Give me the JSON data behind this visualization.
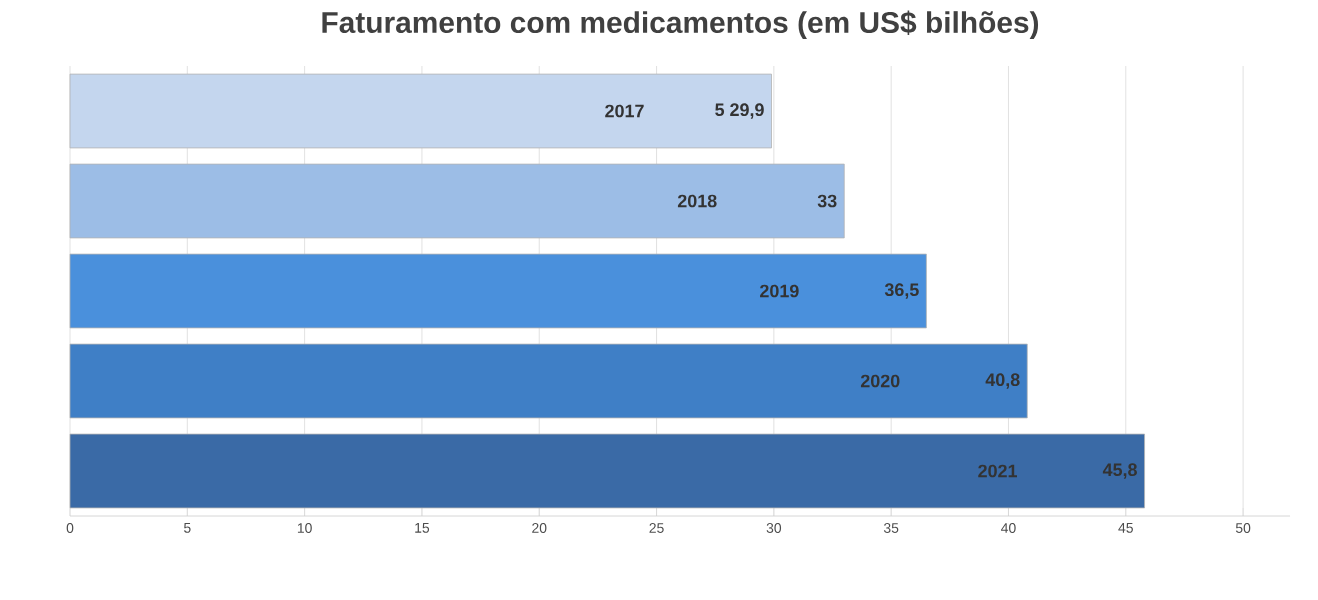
{
  "chart_data": {
    "type": "bar",
    "orientation": "horizontal",
    "title": "Faturamento com medicamentos (em US$ bilhões)",
    "categories": [
      "2017",
      "2018",
      "2019",
      "2020",
      "2021"
    ],
    "values": [
      29.9,
      33,
      36.5,
      40.8,
      45.8
    ],
    "value_labels": [
      "5 29,9",
      "33",
      "36,5",
      "40,8",
      "45,8"
    ],
    "colors": [
      "#c4d6ee",
      "#9cbde6",
      "#4a90dc",
      "#3f7fc6",
      "#3a6aa6"
    ],
    "xlim": [
      0,
      52
    ],
    "xticks": [
      0,
      5,
      10,
      15,
      20,
      25,
      30,
      35,
      40,
      45,
      50
    ],
    "grid": "x"
  }
}
